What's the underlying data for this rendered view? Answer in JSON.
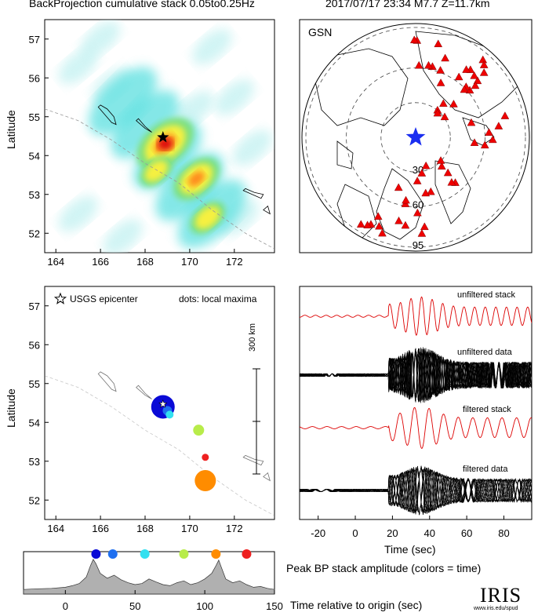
{
  "header": {
    "left_title": "BackProjection cumulative stack 0.05to0.25Hz",
    "right_title": "2017/07/17 23:34  M7.7  Z=11.7km"
  },
  "bp_map": {
    "ylabel": "Latitude",
    "xticks": [
      "164",
      "166",
      "168",
      "170",
      "172"
    ],
    "yticks": [
      "52",
      "53",
      "54",
      "55",
      "56",
      "57"
    ]
  },
  "station_map": {
    "network": "GSN",
    "ring_labels": [
      "30",
      "60",
      "95"
    ]
  },
  "maxima_map": {
    "ylabel": "Latitude",
    "xticks": [
      "164",
      "166",
      "168",
      "170",
      "172"
    ],
    "yticks": [
      "52",
      "53",
      "54",
      "55",
      "56",
      "57"
    ],
    "legend_epicenter": "USGS epicenter",
    "legend_dots": "dots: local maxima",
    "scale_label": "300 km"
  },
  "seismograms": {
    "traces": [
      "unfiltered stack",
      "unfiltered data",
      "filtered stack",
      "filtered data"
    ],
    "xticks": [
      "-20",
      "0",
      "20",
      "40",
      "60",
      "80"
    ],
    "xlabel": "Time (sec)"
  },
  "peak_panel": {
    "xticks": [
      "0",
      "50",
      "100",
      "150"
    ],
    "caption": "Peak BP stack amplitude (colors = time)",
    "xlabel": "Time relative to origin (sec)"
  },
  "logo": {
    "name": "IRIS",
    "url": "www.iris.edu/spud"
  },
  "chart_data": [
    {
      "type": "heatmap",
      "title": "BackProjection cumulative stack 0.05to0.25Hz",
      "xlim": [
        163.5,
        173.8
      ],
      "ylim": [
        51.5,
        57.5
      ],
      "ylabel": "Latitude",
      "epicenter": {
        "lon": 168.8,
        "lat": 54.47
      },
      "hotspots": [
        {
          "lon": 168.9,
          "lat": 54.3,
          "amp": 1.0
        },
        {
          "lon": 170.3,
          "lat": 53.4,
          "amp": 0.75
        },
        {
          "lon": 170.8,
          "lat": 52.4,
          "amp": 0.5
        },
        {
          "lon": 168.5,
          "lat": 53.6,
          "amp": 0.45
        }
      ]
    },
    {
      "type": "scatter",
      "title": "GSN",
      "distance_rings_deg": [
        30,
        60,
        95
      ],
      "station_count": 60,
      "marker": "red triangles"
    },
    {
      "type": "scatter",
      "xlim": [
        163.5,
        173.8
      ],
      "ylim": [
        51.5,
        57.5
      ],
      "ylabel": "Latitude",
      "points": [
        {
          "lon": 168.8,
          "lat": 54.4,
          "time": 20,
          "size": 3,
          "color": "#0a0ad6"
        },
        {
          "lon": 169.0,
          "lat": 54.3,
          "time": 33,
          "size": 1.2,
          "color": "#1e6ff0"
        },
        {
          "lon": 169.1,
          "lat": 54.2,
          "time": 57,
          "size": 1,
          "color": "#33e0f0"
        },
        {
          "lon": 170.4,
          "lat": 53.8,
          "time": 85,
          "size": 1.4,
          "color": "#b8ec4a"
        },
        {
          "lon": 170.7,
          "lat": 53.1,
          "time": 128,
          "size": 0.9,
          "color": "#ee2020"
        },
        {
          "lon": 170.7,
          "lat": 52.5,
          "time": 108,
          "size": 2.7,
          "color": "#ff8c00"
        }
      ]
    },
    {
      "type": "line",
      "xlabel": "Time (sec)",
      "xlim": [
        -30,
        95
      ],
      "series": [
        {
          "name": "unfiltered stack",
          "color": "#dd0000"
        },
        {
          "name": "unfiltered data",
          "color": "#000000"
        },
        {
          "name": "filtered stack",
          "color": "#dd0000"
        },
        {
          "name": "filtered data",
          "color": "#000000"
        }
      ]
    },
    {
      "type": "area",
      "xlabel": "Time relative to origin (sec)",
      "xlim": [
        -30,
        150
      ],
      "x": [
        -30,
        -20,
        -10,
        0,
        5,
        10,
        15,
        18,
        20,
        22,
        25,
        30,
        35,
        40,
        45,
        50,
        55,
        60,
        65,
        70,
        75,
        80,
        85,
        90,
        95,
        100,
        105,
        108,
        110,
        112,
        115,
        120,
        125,
        130,
        135,
        140,
        145,
        150
      ],
      "y": [
        0.12,
        0.14,
        0.15,
        0.18,
        0.22,
        0.28,
        0.45,
        0.75,
        0.92,
        0.8,
        0.55,
        0.42,
        0.5,
        0.38,
        0.3,
        0.25,
        0.28,
        0.4,
        0.32,
        0.25,
        0.22,
        0.3,
        0.35,
        0.25,
        0.3,
        0.4,
        0.55,
        0.75,
        0.9,
        0.7,
        0.4,
        0.3,
        0.35,
        0.25,
        0.18,
        0.2,
        0.15,
        0.12
      ],
      "ylim": [
        0,
        1
      ],
      "markers": [
        {
          "x": 22,
          "color": "#0a0ad6"
        },
        {
          "x": 34,
          "color": "#1e6ff0"
        },
        {
          "x": 57,
          "color": "#33e0f0"
        },
        {
          "x": 85,
          "color": "#b8ec4a"
        },
        {
          "x": 108,
          "color": "#ff8c00"
        },
        {
          "x": 130,
          "color": "#ee2020"
        }
      ]
    }
  ]
}
